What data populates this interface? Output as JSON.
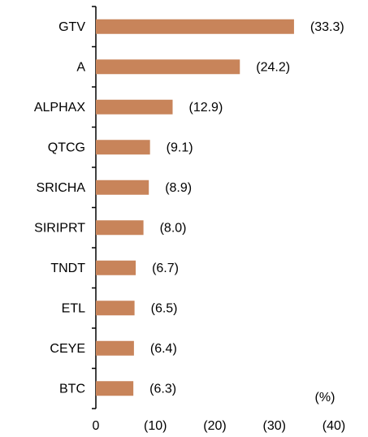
{
  "chart_data": {
    "type": "barh",
    "categories": [
      "GTV",
      "A",
      "ALPHAX",
      "QTCG",
      "SRICHA",
      "SIRIPRT",
      "TNDT",
      "ETL",
      "CEYE",
      "BTC"
    ],
    "values": [
      -33.3,
      -24.2,
      -12.9,
      -9.1,
      -8.9,
      -8.0,
      -6.7,
      -6.5,
      -6.4,
      -6.3
    ],
    "value_labels": [
      "(33.3)",
      "(24.2)",
      "(12.9)",
      "(9.1)",
      "(8.9)",
      "(8.0)",
      "(6.7)",
      "(6.5)",
      "(6.4)",
      "(6.3)"
    ],
    "color": "#c8845a",
    "xlim": [
      0,
      -40
    ],
    "xticks": [
      0,
      {
        "value": -10,
        "label": "(10)"
      },
      {
        "value": -20,
        "label": "(20)"
      },
      {
        "value": -30,
        "label": "(30)"
      },
      {
        "value": -40,
        "label": "(40)"
      }
    ],
    "annotation": "(%)"
  }
}
